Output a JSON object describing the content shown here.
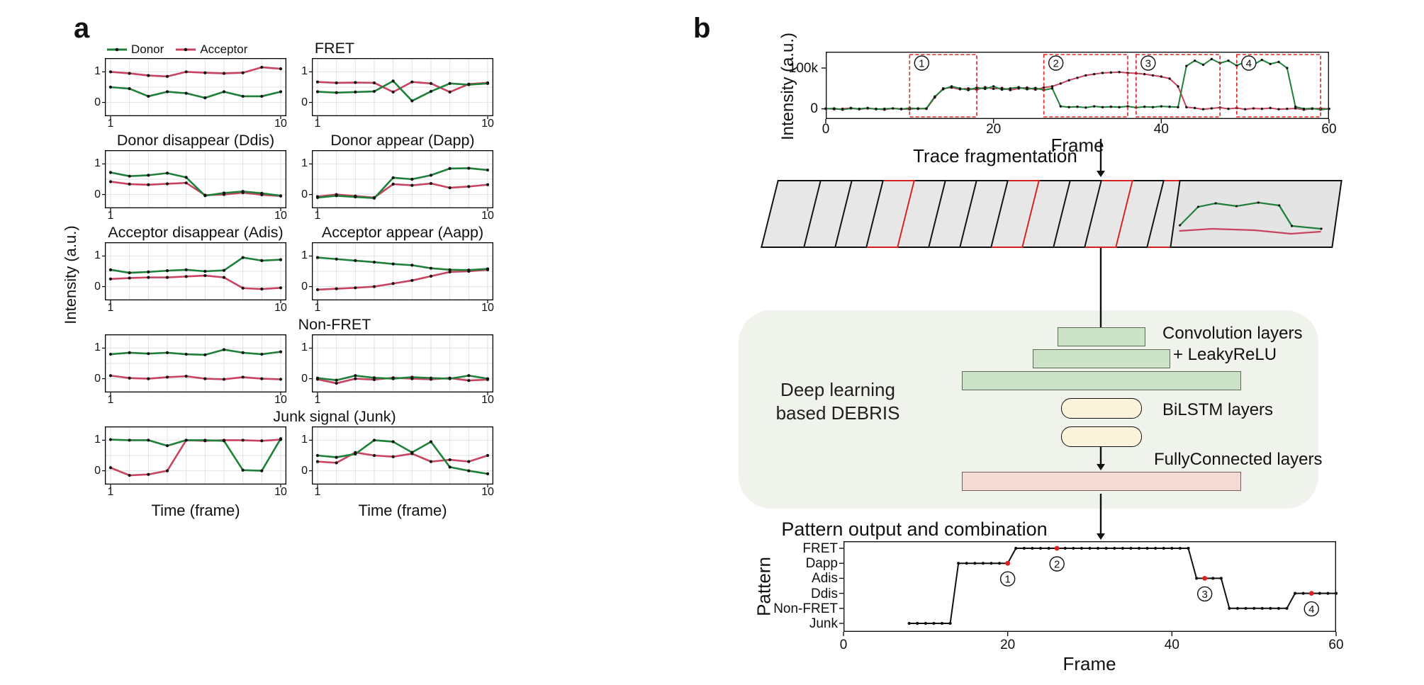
{
  "panel_a": {
    "label": "a",
    "ylabel": "Intensity (a.u.)",
    "xlabel": "Time (frame)",
    "legend": [
      {
        "label": "Donor",
        "color": "#1f8039"
      },
      {
        "label": "Acceptor",
        "color": "#c8435f"
      }
    ]
  },
  "panel_b": {
    "label": "b",
    "trace": {
      "ylabel": "Intensity (a.u.)",
      "xlabel": "Frame",
      "y_ticks": [
        "100k",
        "0"
      ],
      "x_ticks": [
        "0",
        "20",
        "40",
        "60"
      ]
    },
    "fragmentation_label": "Trace fragmentation",
    "fragment_stack": {
      "count": 13,
      "red_indices": [
        3,
        7,
        10,
        12
      ]
    },
    "dl_line1": "Deep learning",
    "dl_line2": "based DEBRIS",
    "conv_label_1": "Convolution layers",
    "conv_label_2": "+ LeakyReLU",
    "bilstm_label": "BiLSTM layers",
    "fc_label": "FullyConnected layers",
    "pattern_output_label": "Pattern output and combination",
    "pattern": {
      "ylabel": "Pattern",
      "xlabel": "Frame",
      "x_ticks": [
        "0",
        "20",
        "40",
        "60"
      ]
    }
  },
  "chart_data": {
    "colors": {
      "donor": "#1f8039",
      "acceptor": "#c8435f",
      "marker": "#e02020",
      "dots": "#111111",
      "region_box": "#e02222"
    },
    "panel_a_charts": {
      "type": "line",
      "x": [
        1,
        2,
        3,
        4,
        5,
        6,
        7,
        8,
        9,
        10
      ],
      "x_ticks": [
        "1",
        "10"
      ],
      "y_ticks": [
        "1",
        "0"
      ],
      "ylim": [
        -0.45,
        1.45
      ],
      "series_names": [
        "Donor",
        "Acceptor"
      ],
      "rows": [
        {
          "titles": [
            "FRET"
          ],
          "charts": [
            {
              "donor": [
                0.5,
                0.45,
                0.2,
                0.35,
                0.3,
                0.15,
                0.35,
                0.2,
                0.2,
                0.35
              ],
              "acceptor": [
                1.0,
                0.95,
                0.88,
                0.85,
                1.0,
                0.97,
                0.95,
                0.97,
                1.15,
                1.1
              ]
            },
            {
              "donor": [
                0.35,
                0.32,
                0.34,
                0.36,
                0.7,
                0.05,
                0.36,
                0.62,
                0.58,
                0.62
              ],
              "acceptor": [
                0.67,
                0.64,
                0.65,
                0.64,
                0.34,
                0.67,
                0.62,
                0.34,
                0.6,
                0.64
              ]
            }
          ]
        },
        {
          "titles": [
            "Donor disappear (Ddis)",
            "Donor appear (Dapp)"
          ],
          "charts": [
            {
              "donor": [
                0.72,
                0.6,
                0.63,
                0.7,
                0.56,
                -0.04,
                0.05,
                0.1,
                0.04,
                -0.04
              ],
              "acceptor": [
                0.42,
                0.34,
                0.32,
                0.35,
                0.38,
                -0.02,
                0.0,
                0.06,
                -0.01,
                -0.05
              ]
            },
            {
              "donor": [
                -0.1,
                -0.04,
                -0.08,
                -0.12,
                0.55,
                0.5,
                0.63,
                0.85,
                0.86,
                0.8
              ],
              "acceptor": [
                -0.07,
                0.0,
                -0.05,
                -0.1,
                0.34,
                0.3,
                0.36,
                0.22,
                0.26,
                0.32
              ]
            }
          ]
        },
        {
          "titles": [
            "Acceptor disappear (Adis)",
            "Acceptor appear (Aapp)"
          ],
          "charts": [
            {
              "donor": [
                0.55,
                0.45,
                0.48,
                0.52,
                0.55,
                0.5,
                0.53,
                0.95,
                0.85,
                0.88
              ],
              "acceptor": [
                0.25,
                0.28,
                0.3,
                0.3,
                0.33,
                0.36,
                0.3,
                -0.05,
                -0.08,
                -0.04
              ]
            },
            {
              "donor": [
                0.95,
                0.9,
                0.85,
                0.8,
                0.74,
                0.7,
                0.6,
                0.55,
                0.54,
                0.58
              ],
              "acceptor": [
                -0.1,
                -0.07,
                -0.04,
                0.0,
                0.1,
                0.2,
                0.34,
                0.48,
                0.5,
                0.55
              ]
            }
          ]
        },
        {
          "titles": [
            "Non-FRET"
          ],
          "charts": [
            {
              "donor": [
                0.8,
                0.85,
                0.82,
                0.85,
                0.8,
                0.78,
                0.95,
                0.85,
                0.8,
                0.88
              ],
              "acceptor": [
                0.1,
                0.02,
                0.0,
                0.05,
                0.08,
                0.0,
                -0.02,
                0.05,
                0.0,
                -0.02
              ]
            },
            {
              "donor": [
                0.02,
                -0.05,
                0.1,
                0.03,
                0.0,
                0.05,
                0.02,
                0.0,
                0.1,
                0.0
              ],
              "acceptor": [
                -0.02,
                -0.15,
                0.0,
                -0.03,
                0.03,
                0.0,
                -0.02,
                0.02,
                -0.06,
                -0.03
              ]
            }
          ]
        },
        {
          "titles": [
            "Junk signal (Junk)"
          ],
          "charts": [
            {
              "donor": [
                1.02,
                1.0,
                1.0,
                0.82,
                1.0,
                1.0,
                0.98,
                0.02,
                0.0,
                1.05
              ],
              "acceptor": [
                0.1,
                -0.15,
                -0.12,
                0.0,
                1.0,
                0.98,
                1.0,
                1.0,
                0.98,
                1.02
              ]
            },
            {
              "donor": [
                0.5,
                0.44,
                0.55,
                1.0,
                0.95,
                0.6,
                0.95,
                0.12,
                0.0,
                -0.1
              ],
              "acceptor": [
                0.3,
                0.26,
                0.6,
                0.5,
                0.46,
                0.56,
                0.3,
                0.36,
                0.3,
                0.5
              ]
            }
          ]
        }
      ]
    },
    "trace": {
      "type": "line",
      "xlim": [
        0,
        60
      ],
      "ylim_k": [
        -25,
        140
      ],
      "values_scale": "thousands (k)",
      "y_tick_values_k": [
        100,
        0
      ],
      "x_tick_values": [
        0,
        20,
        40,
        60
      ],
      "donor_k": [
        0,
        1,
        -2,
        1,
        0,
        2,
        -1,
        0,
        1,
        -1,
        2,
        0,
        1,
        30,
        48,
        55,
        50,
        46,
        52,
        49,
        55,
        47,
        50,
        53,
        48,
        51,
        46,
        50,
        6,
        4,
        5,
        3,
        6,
        4,
        5,
        4,
        6,
        3,
        5,
        4,
        6,
        5,
        4,
        105,
        118,
        108,
        122,
        112,
        118,
        106,
        115,
        108,
        120,
        110,
        115,
        100,
        5,
        0,
        1,
        -2,
        0
      ],
      "acceptor_k": [
        1,
        -1,
        0,
        2,
        -1,
        1,
        0,
        -2,
        1,
        0,
        -1,
        1,
        0,
        28,
        50,
        52,
        48,
        50,
        47,
        53,
        49,
        51,
        46,
        50,
        52,
        47,
        52,
        55,
        62,
        70,
        76,
        82,
        85,
        88,
        89,
        90,
        88,
        87,
        85,
        82,
        79,
        74,
        55,
        4,
        2,
        -1,
        1,
        3,
        0,
        2,
        -1,
        1,
        0,
        2,
        -1,
        0,
        1,
        -2,
        0,
        1,
        0
      ],
      "regions": [
        {
          "glyph": "①",
          "digit": "1",
          "x0": 10,
          "x1": 18
        },
        {
          "glyph": "②",
          "digit": "2",
          "x0": 26,
          "x1": 36
        },
        {
          "glyph": "③",
          "digit": "3",
          "x0": 37,
          "x1": 47
        },
        {
          "glyph": "④",
          "digit": "4",
          "x0": 49,
          "x1": 59
        }
      ]
    },
    "pattern": {
      "type": "step",
      "xlim": [
        0,
        60
      ],
      "x_tick_values": [
        0,
        20,
        40,
        60
      ],
      "categories": [
        "FRET",
        "Dapp",
        "Adis",
        "Ddis",
        "Non-FRET",
        "Junk"
      ],
      "steps": [
        {
          "from": 8,
          "to": 13,
          "level": "Junk"
        },
        {
          "from": 14,
          "to": 20,
          "level": "Dapp"
        },
        {
          "from": 21,
          "to": 42,
          "level": "FRET"
        },
        {
          "from": 43,
          "to": 46,
          "level": "Adis"
        },
        {
          "from": 47,
          "to": 54,
          "level": "Non-FRET"
        },
        {
          "from": 55,
          "to": 60,
          "level": "Ddis"
        }
      ],
      "markers": [
        {
          "frame": 20,
          "level": "Dapp",
          "glyph": "①",
          "digit": "1"
        },
        {
          "frame": 26,
          "level": "FRET",
          "glyph": "②",
          "digit": "2"
        },
        {
          "frame": 44,
          "level": "Adis",
          "glyph": "③",
          "digit": "3"
        },
        {
          "frame": 57,
          "level": "Ddis",
          "glyph": "④",
          "digit": "4"
        }
      ]
    }
  }
}
